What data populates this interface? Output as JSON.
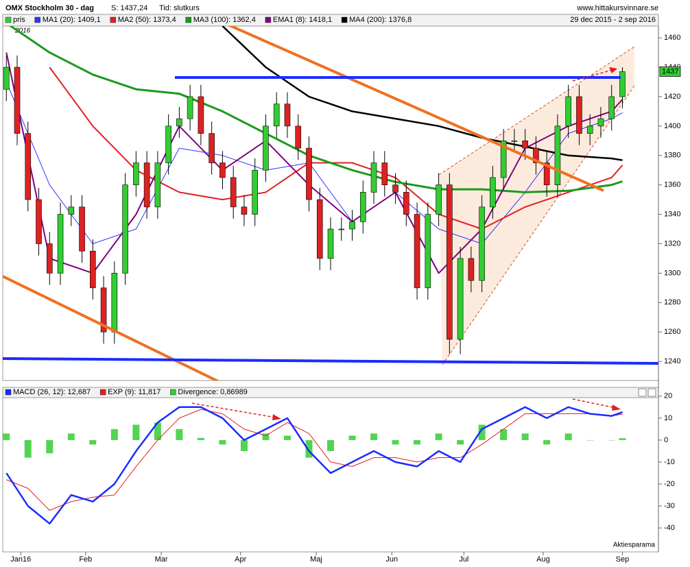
{
  "chart_data": [
    {
      "type": "candlestick",
      "title": "OMX Stockholm 30 - dag",
      "name": "pris",
      "annotations": [
        "S: 1437,24",
        "Tid: slutkurs",
        "www.hittakursvinnare.se",
        "29 dec 2015 - 2 sep 2016",
        "2016"
      ],
      "last_label": "1437",
      "up_color": "#33cc33",
      "down_color": "#dd2222",
      "x": [
        0,
        3,
        6,
        9,
        12,
        15,
        18,
        21,
        24,
        27,
        30,
        33,
        36,
        39,
        42,
        45,
        48,
        51,
        54,
        57,
        60,
        63,
        66,
        69,
        72,
        75,
        78,
        81,
        84,
        87,
        90,
        93,
        96,
        99,
        102,
        105,
        108,
        111,
        114,
        117,
        120,
        123,
        126,
        129,
        132,
        135,
        138,
        141,
        144,
        147,
        150,
        153,
        156,
        159,
        162,
        165,
        168,
        171
      ],
      "open": [
        1425,
        1440,
        1395,
        1350,
        1320,
        1300,
        1340,
        1345,
        1315,
        1290,
        1260,
        1300,
        1360,
        1375,
        1345,
        1375,
        1400,
        1405,
        1420,
        1395,
        1375,
        1365,
        1345,
        1340,
        1370,
        1400,
        1415,
        1400,
        1385,
        1350,
        1310,
        1330,
        1330,
        1335,
        1355,
        1375,
        1360,
        1355,
        1340,
        1290,
        1340,
        1360,
        1255,
        1310,
        1295,
        1345,
        1365,
        1390,
        1390,
        1385,
        1375,
        1360,
        1400,
        1420,
        1395,
        1400,
        1405,
        1420
      ],
      "high": [
        1448,
        1448,
        1403,
        1358,
        1328,
        1348,
        1353,
        1353,
        1323,
        1298,
        1308,
        1368,
        1383,
        1383,
        1383,
        1408,
        1413,
        1428,
        1428,
        1403,
        1383,
        1373,
        1353,
        1378,
        1408,
        1423,
        1423,
        1408,
        1393,
        1358,
        1338,
        1338,
        1343,
        1363,
        1383,
        1383,
        1368,
        1363,
        1348,
        1348,
        1368,
        1368,
        1318,
        1318,
        1353,
        1373,
        1398,
        1398,
        1398,
        1393,
        1383,
        1408,
        1428,
        1428,
        1408,
        1413,
        1428,
        1440
      ],
      "low": [
        1417,
        1387,
        1342,
        1312,
        1292,
        1292,
        1332,
        1307,
        1282,
        1252,
        1252,
        1292,
        1352,
        1337,
        1337,
        1367,
        1392,
        1397,
        1387,
        1367,
        1357,
        1337,
        1332,
        1332,
        1362,
        1392,
        1392,
        1377,
        1342,
        1302,
        1302,
        1322,
        1322,
        1327,
        1347,
        1352,
        1347,
        1332,
        1282,
        1282,
        1332,
        1245,
        1245,
        1287,
        1287,
        1337,
        1357,
        1382,
        1377,
        1367,
        1352,
        1352,
        1392,
        1387,
        1387,
        1392,
        1397,
        1412
      ],
      "close": [
        1440,
        1395,
        1350,
        1320,
        1300,
        1340,
        1345,
        1315,
        1290,
        1260,
        1300,
        1360,
        1375,
        1345,
        1375,
        1400,
        1405,
        1420,
        1395,
        1375,
        1365,
        1345,
        1340,
        1370,
        1400,
        1415,
        1400,
        1385,
        1350,
        1310,
        1330,
        1330,
        1335,
        1355,
        1375,
        1360,
        1355,
        1340,
        1290,
        1340,
        1360,
        1255,
        1310,
        1295,
        1345,
        1365,
        1390,
        1390,
        1385,
        1375,
        1360,
        1400,
        1420,
        1395,
        1400,
        1405,
        1420,
        1437
      ],
      "series": [
        {
          "name": "MA1 (20): 1409,1",
          "color": "#3333ff",
          "width": 1,
          "x": [
            0,
            12,
            24,
            36,
            48,
            60,
            72,
            84,
            96,
            108,
            120,
            132,
            144,
            156,
            168,
            171
          ],
          "values": [
            1430,
            1360,
            1320,
            1330,
            1385,
            1380,
            1370,
            1375,
            1335,
            1355,
            1330,
            1320,
            1355,
            1395,
            1405,
            1409.1
          ]
        },
        {
          "name": "MA2 (50): 1373,4",
          "color": "#e02020",
          "width": 2,
          "x": [
            0,
            12,
            24,
            36,
            48,
            60,
            72,
            84,
            96,
            108,
            120,
            132,
            144,
            156,
            168,
            171
          ],
          "values": [
            null,
            1440,
            1400,
            1370,
            1355,
            1350,
            1355,
            1375,
            1375,
            1365,
            1340,
            1330,
            1345,
            1355,
            1365,
            1373.4
          ]
        },
        {
          "name": "MA3 (100): 1362,4",
          "color": "#1a9a1a",
          "width": 3,
          "x": [
            0,
            12,
            24,
            36,
            48,
            60,
            72,
            84,
            96,
            108,
            120,
            132,
            144,
            156,
            168,
            171
          ],
          "values": [
            1470,
            1450,
            1435,
            1425,
            1422,
            1410,
            1395,
            1380,
            1370,
            1362,
            1357,
            1357,
            1355,
            1356,
            1360,
            1362.4
          ]
        },
        {
          "name": "EMA1 (8): 1418,1",
          "color": "#800080",
          "width": 2,
          "x": [
            0,
            12,
            24,
            36,
            48,
            60,
            72,
            84,
            96,
            108,
            120,
            132,
            144,
            156,
            168,
            171
          ],
          "values": [
            1450,
            1310,
            1300,
            1340,
            1400,
            1370,
            1390,
            1360,
            1335,
            1355,
            1300,
            1330,
            1385,
            1400,
            1410,
            1418.1
          ]
        },
        {
          "name": "MA4 (200): 1376,8",
          "color": "#000000",
          "width": 2.5,
          "x": [
            0,
            12,
            24,
            36,
            48,
            60,
            72,
            84,
            96,
            108,
            120,
            132,
            144,
            156,
            168,
            171
          ],
          "values": [
            null,
            null,
            null,
            null,
            null,
            1468,
            1440,
            1420,
            1410,
            1405,
            1400,
            1392,
            1386,
            1380,
            1378,
            1376.8
          ]
        }
      ],
      "xlim": [
        -1,
        181
      ],
      "ylim": [
        1227,
        1468
      ],
      "yticks": [
        1240,
        1260,
        1280,
        1300,
        1320,
        1340,
        1360,
        1380,
        1400,
        1420,
        1440,
        1460
      ],
      "xticks": [
        {
          "value": 4,
          "label": "Jan16"
        },
        {
          "value": 22,
          "label": "Feb"
        },
        {
          "value": 43,
          "label": "Mar"
        },
        {
          "value": 65,
          "label": "Apr"
        },
        {
          "value": 86,
          "label": "Maj"
        },
        {
          "value": 107,
          "label": "Jun"
        },
        {
          "value": 127,
          "label": "Jul"
        },
        {
          "value": 149,
          "label": "Aug"
        },
        {
          "value": 171,
          "label": "Sep"
        }
      ]
    },
    {
      "type": "macd",
      "annotations": [
        "Aktiesparama"
      ],
      "series": [
        {
          "name": "MACD (26, 12): 12,687",
          "color": "#1a2cff",
          "width": 2.5,
          "x": [
            0,
            6,
            12,
            18,
            24,
            30,
            36,
            42,
            48,
            54,
            60,
            66,
            72,
            78,
            84,
            90,
            96,
            102,
            108,
            114,
            120,
            126,
            132,
            138,
            144,
            150,
            156,
            162,
            168,
            171
          ],
          "values": [
            -15,
            -30,
            -38,
            -25,
            -28,
            -20,
            -5,
            8,
            15,
            15,
            10,
            0,
            5,
            10,
            -5,
            -15,
            -10,
            -5,
            -10,
            -12,
            -5,
            -10,
            5,
            10,
            15,
            10,
            15,
            12,
            11,
            12.687
          ]
        },
        {
          "name": "EXP (9): 11,817",
          "color": "#e02020",
          "width": 1,
          "x": [
            0,
            6,
            12,
            18,
            24,
            30,
            36,
            42,
            48,
            54,
            60,
            66,
            72,
            78,
            84,
            90,
            96,
            102,
            108,
            114,
            120,
            126,
            132,
            138,
            144,
            150,
            156,
            162,
            168,
            171
          ],
          "values": [
            -18,
            -22,
            -32,
            -28,
            -26,
            -25,
            -12,
            0,
            10,
            14,
            12,
            5,
            2,
            8,
            3,
            -10,
            -12,
            -8,
            -8,
            -10,
            -8,
            -8,
            -2,
            5,
            12,
            12,
            12,
            12,
            11,
            11.817
          ]
        }
      ],
      "bars": {
        "name": "Divergence: 0,86989",
        "color": "#33cc33",
        "x": [
          0,
          6,
          12,
          18,
          24,
          30,
          36,
          42,
          48,
          54,
          60,
          66,
          72,
          78,
          84,
          90,
          96,
          102,
          108,
          114,
          120,
          126,
          132,
          138,
          144,
          150,
          156,
          162,
          168,
          171
        ],
        "values": [
          3,
          -8,
          -6,
          3,
          -2,
          5,
          7,
          8,
          5,
          1,
          -2,
          -5,
          3,
          2,
          -8,
          -5,
          2,
          3,
          -2,
          -2,
          3,
          -2,
          7,
          5,
          3,
          -2,
          3,
          0,
          0,
          0.86989
        ]
      },
      "xlim": [
        -1,
        181
      ],
      "ylim": [
        -50.9,
        24
      ],
      "yticks": [
        -40,
        -30,
        -20,
        -10,
        0,
        10,
        20
      ]
    }
  ]
}
